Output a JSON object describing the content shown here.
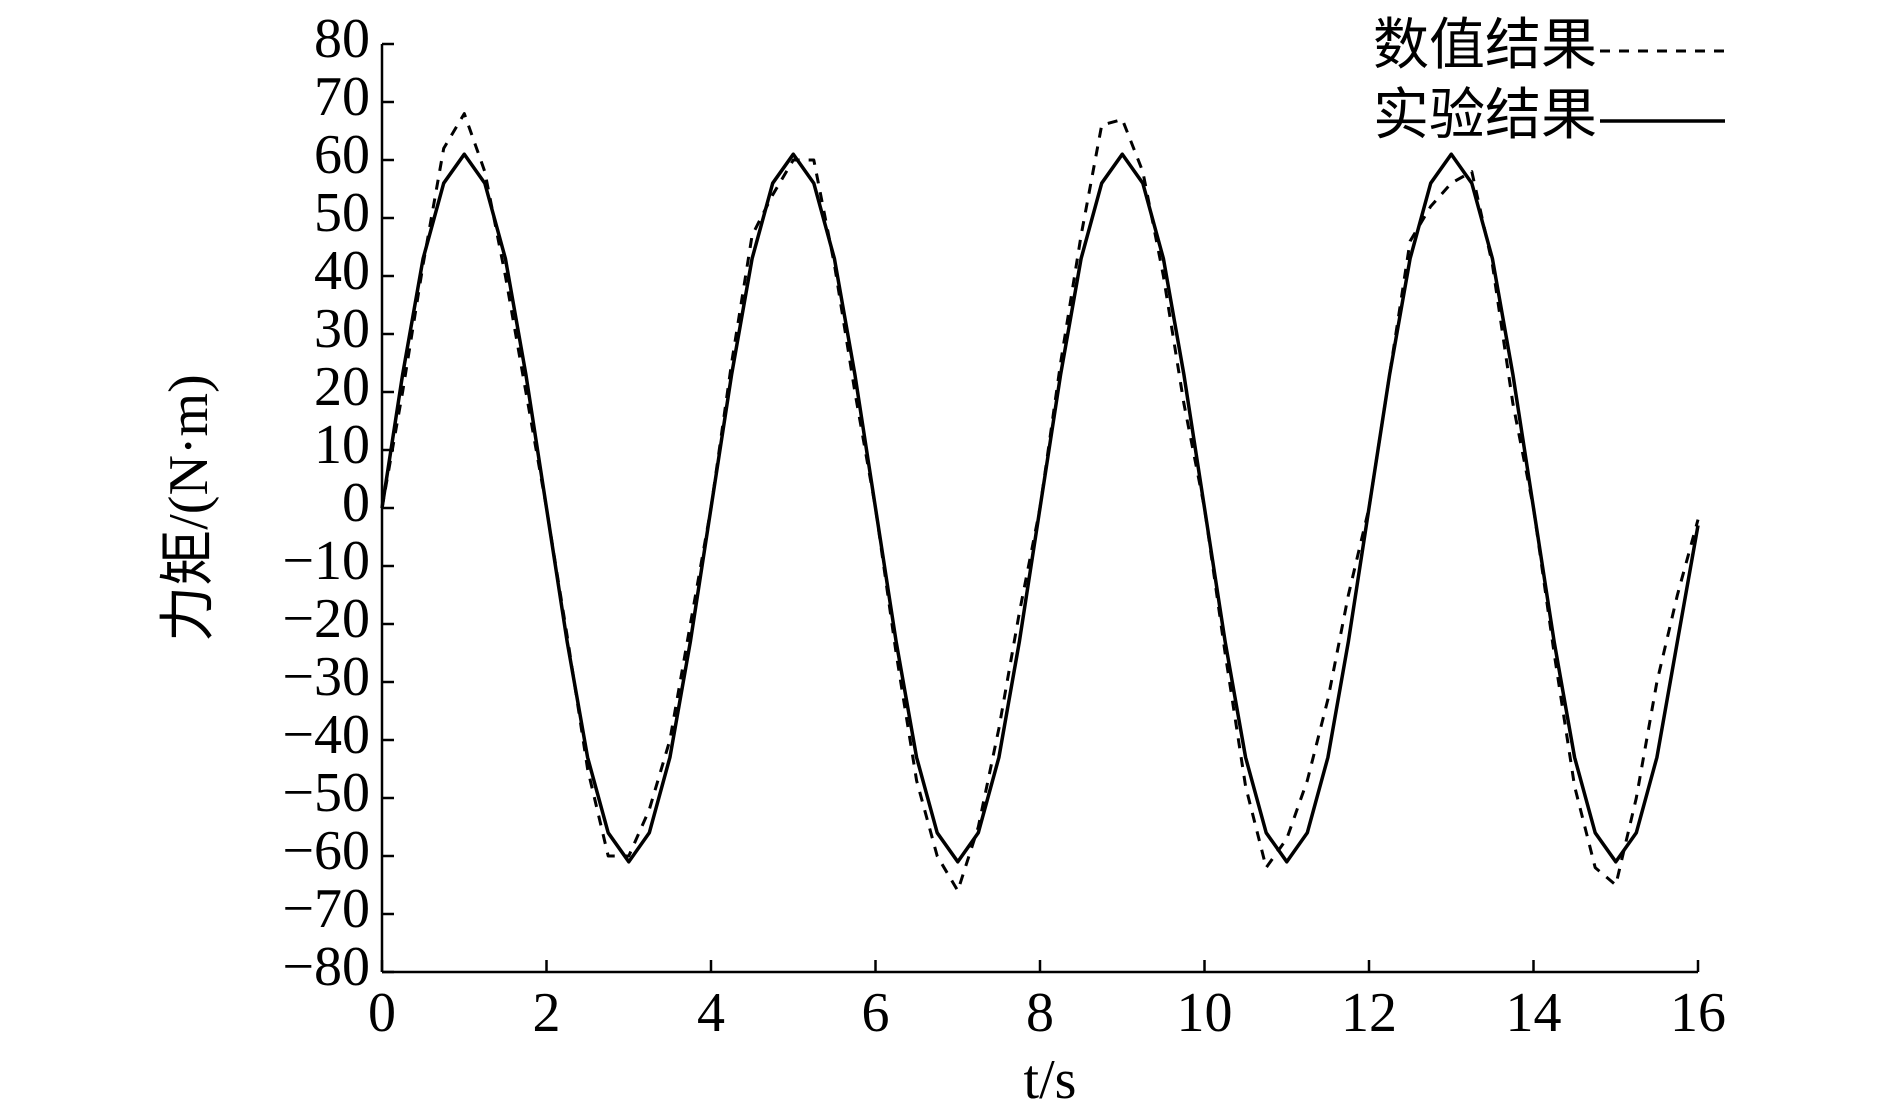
{
  "chart_data": {
    "type": "line",
    "x_label": "t/s",
    "y_label": "力矩/(N·m)",
    "x": [
      0,
      0.25,
      0.5,
      0.75,
      1,
      1.25,
      1.5,
      1.75,
      2,
      2.25,
      2.5,
      2.75,
      3,
      3.25,
      3.5,
      3.75,
      4,
      4.25,
      4.5,
      4.75,
      5,
      5.25,
      5.5,
      5.75,
      6,
      6.25,
      6.5,
      6.75,
      7,
      7.25,
      7.5,
      7.75,
      8,
      8.25,
      8.5,
      8.75,
      9,
      9.25,
      9.5,
      9.75,
      10,
      10.25,
      10.5,
      10.75,
      11,
      11.25,
      11.5,
      11.75,
      12,
      12.25,
      12.5,
      12.75,
      13,
      13.25,
      13.5,
      13.75,
      14,
      14.25,
      14.5,
      14.75,
      15,
      15.25,
      15.5,
      15.75,
      16
    ],
    "series": [
      {
        "name": "数值结果",
        "color": "#000000",
        "dash": true,
        "values": [
          0,
          20,
          42,
          62,
          68,
          58,
          40,
          20,
          0,
          -22,
          -45,
          -60,
          -60,
          -52,
          -40,
          -20,
          0,
          25,
          47,
          54,
          60,
          60,
          42,
          20,
          0,
          -25,
          -47,
          -60,
          -66,
          -55,
          -38,
          -18,
          0,
          25,
          47,
          66,
          67,
          58,
          40,
          18,
          0,
          -25,
          -48,
          -62,
          -57,
          -47,
          -33,
          -15,
          0,
          23,
          46,
          52,
          56,
          58,
          42,
          18,
          0,
          -25,
          -48,
          -62,
          -65,
          -50,
          -30,
          -15,
          -2
        ]
      },
      {
        "name": "实验结果",
        "color": "#000000",
        "dash": false,
        "values": [
          0,
          23,
          43,
          56,
          61,
          56,
          43,
          23,
          0,
          -23,
          -43,
          -56,
          -61,
          -56,
          -43,
          -23,
          0,
          23,
          43,
          56,
          61,
          56,
          43,
          23,
          0,
          -23,
          -43,
          -56,
          -61,
          -56,
          -43,
          -23,
          0,
          23,
          43,
          56,
          61,
          56,
          43,
          23,
          0,
          -23,
          -43,
          -56,
          -61,
          -56,
          -43,
          -23,
          0,
          23,
          43,
          56,
          61,
          56,
          43,
          23,
          0,
          -23,
          -43,
          -56,
          -61,
          -56,
          -43,
          -23,
          -3
        ]
      }
    ],
    "xlim": [
      0,
      16
    ],
    "xticks": [
      0,
      2,
      4,
      6,
      8,
      10,
      12,
      14,
      16
    ],
    "ylim": [
      -80,
      80
    ],
    "yticks": [
      {
        "value": -80,
        "label": "−80"
      },
      {
        "value": -70,
        "label": "−70"
      },
      {
        "value": -60,
        "label": "−60"
      },
      {
        "value": -50,
        "label": "−50"
      },
      {
        "value": -40,
        "label": "−40"
      },
      {
        "value": -30,
        "label": "−30"
      },
      {
        "value": -20,
        "label": "−20"
      },
      {
        "value": -10,
        "label": "−10"
      },
      0,
      10,
      20,
      30,
      40,
      50,
      60,
      70,
      80
    ],
    "grid": false,
    "legend": "upper right"
  }
}
